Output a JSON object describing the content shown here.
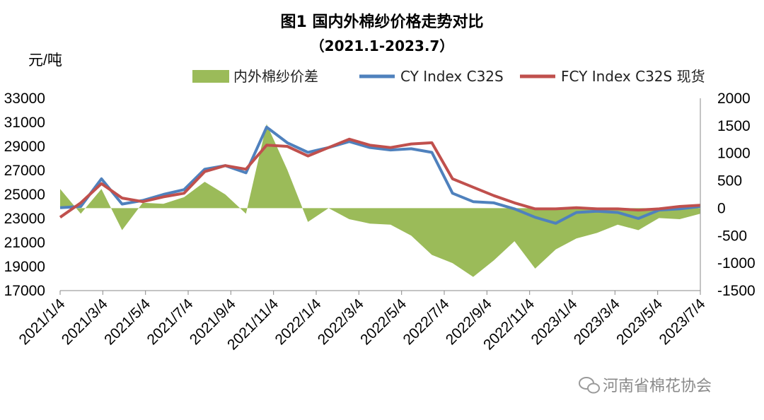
{
  "chart_data": {
    "type": "line",
    "title": "图1   国内外棉纱价格走势对比",
    "subtitle": "（2021.1-2023.7）",
    "ylabel": "元/吨",
    "ylim_left": [
      17000,
      33000
    ],
    "yticks_left": [
      17000,
      19000,
      21000,
      23000,
      25000,
      27000,
      29000,
      31000,
      33000
    ],
    "ylim_right": [
      -1500,
      2000
    ],
    "yticks_right": [
      -1500,
      -1000,
      -500,
      0,
      500,
      1000,
      1500,
      2000
    ],
    "x_tick_labels": [
      "2021/1/4",
      "2021/3/4",
      "2021/5/4",
      "2021/7/4",
      "2021/9/4",
      "2021/11/4",
      "2022/1/4",
      "2022/3/4",
      "2022/5/4",
      "2022/7/4",
      "2022/9/4",
      "2022/11/4",
      "2023/1/4",
      "2023/3/4",
      "2023/5/4",
      "2023/7/4"
    ],
    "grid": false,
    "legend_position": "top",
    "x": [
      "2021/1/4",
      "2021/2/4",
      "2021/3/4",
      "2021/4/4",
      "2021/5/4",
      "2021/6/4",
      "2021/7/4",
      "2021/8/4",
      "2021/9/4",
      "2021/10/4",
      "2021/11/4",
      "2021/12/4",
      "2022/1/4",
      "2022/2/4",
      "2022/3/4",
      "2022/4/4",
      "2022/5/4",
      "2022/6/4",
      "2022/7/4",
      "2022/8/4",
      "2022/9/4",
      "2022/10/4",
      "2022/11/4",
      "2022/12/4",
      "2023/1/4",
      "2023/2/4",
      "2023/3/4",
      "2023/4/4",
      "2023/5/4",
      "2023/6/4",
      "2023/7/4",
      "2023/8/1"
    ],
    "series": [
      {
        "name": "内外棉纱价差",
        "axis": "right",
        "kind": "area",
        "color": "#9bbb59",
        "values": [
          350,
          -100,
          350,
          -400,
          100,
          80,
          200,
          480,
          250,
          -100,
          1530,
          700,
          -250,
          0,
          -200,
          -280,
          -300,
          -500,
          -850,
          -1000,
          -1250,
          -950,
          -600,
          -1100,
          -750,
          -550,
          -450,
          -300,
          -400,
          -180,
          -200,
          -100
        ]
      },
      {
        "name": "CY Index C32S",
        "axis": "left",
        "kind": "line",
        "color": "#4f81bd",
        "values": [
          23900,
          24000,
          26300,
          24200,
          24500,
          25000,
          25400,
          27100,
          27400,
          26800,
          30600,
          29300,
          28500,
          28900,
          29400,
          28900,
          28700,
          28800,
          28500,
          25100,
          24400,
          24300,
          23800,
          23100,
          22600,
          23500,
          23600,
          23500,
          23000,
          23700,
          23800,
          24000
        ]
      },
      {
        "name": "FCY Index C32S 现货",
        "axis": "left",
        "kind": "line",
        "color": "#c0504d",
        "values": [
          23100,
          24300,
          25900,
          24700,
          24400,
          24800,
          25100,
          26900,
          27400,
          27100,
          29100,
          29000,
          28200,
          28900,
          29600,
          29100,
          28900,
          29200,
          29300,
          26300,
          25600,
          24900,
          24300,
          23800,
          23800,
          23900,
          23800,
          23800,
          23700,
          23800,
          24000,
          24100
        ]
      }
    ]
  },
  "watermark": "河南省棉花协会"
}
